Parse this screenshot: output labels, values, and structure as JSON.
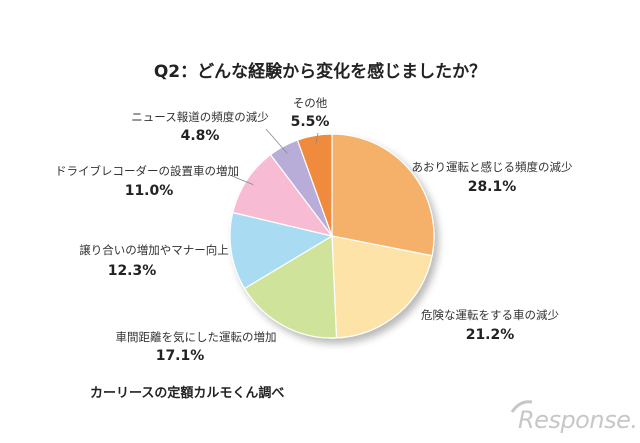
{
  "chart_data": {
    "type": "pie",
    "title": "Q2：どんな経験から変化を感じましたか？",
    "slices": [
      {
        "label": "あおり運転と感じる頻度の減少",
        "value": 28.1,
        "value_label": "28.1%",
        "color": "#f5b06a"
      },
      {
        "label": "危険な運転をする車の減少",
        "value": 21.2,
        "value_label": "21.2%",
        "color": "#fde3a7"
      },
      {
        "label": "車間距離を気にした運転の増加",
        "value": 17.1,
        "value_label": "17.1%",
        "color": "#cfe39a"
      },
      {
        "label": "譲り合いの増加やマナー向上",
        "value": 12.3,
        "value_label": "12.3%",
        "color": "#a9dcf3"
      },
      {
        "label": "ドライブレコーダーの設置車の増加",
        "value": 11.0,
        "value_label": "11.0%",
        "color": "#f7bcd3"
      },
      {
        "label": "ニュース報道の頻度の減少",
        "value": 4.8,
        "value_label": "4.8%",
        "color": "#b8acd9"
      },
      {
        "label": "その他",
        "value": 5.5,
        "value_label": "5.5%",
        "color": "#f08a3c"
      }
    ]
  },
  "source": "カーリースの定額カルモくん調べ",
  "watermark": "Response."
}
